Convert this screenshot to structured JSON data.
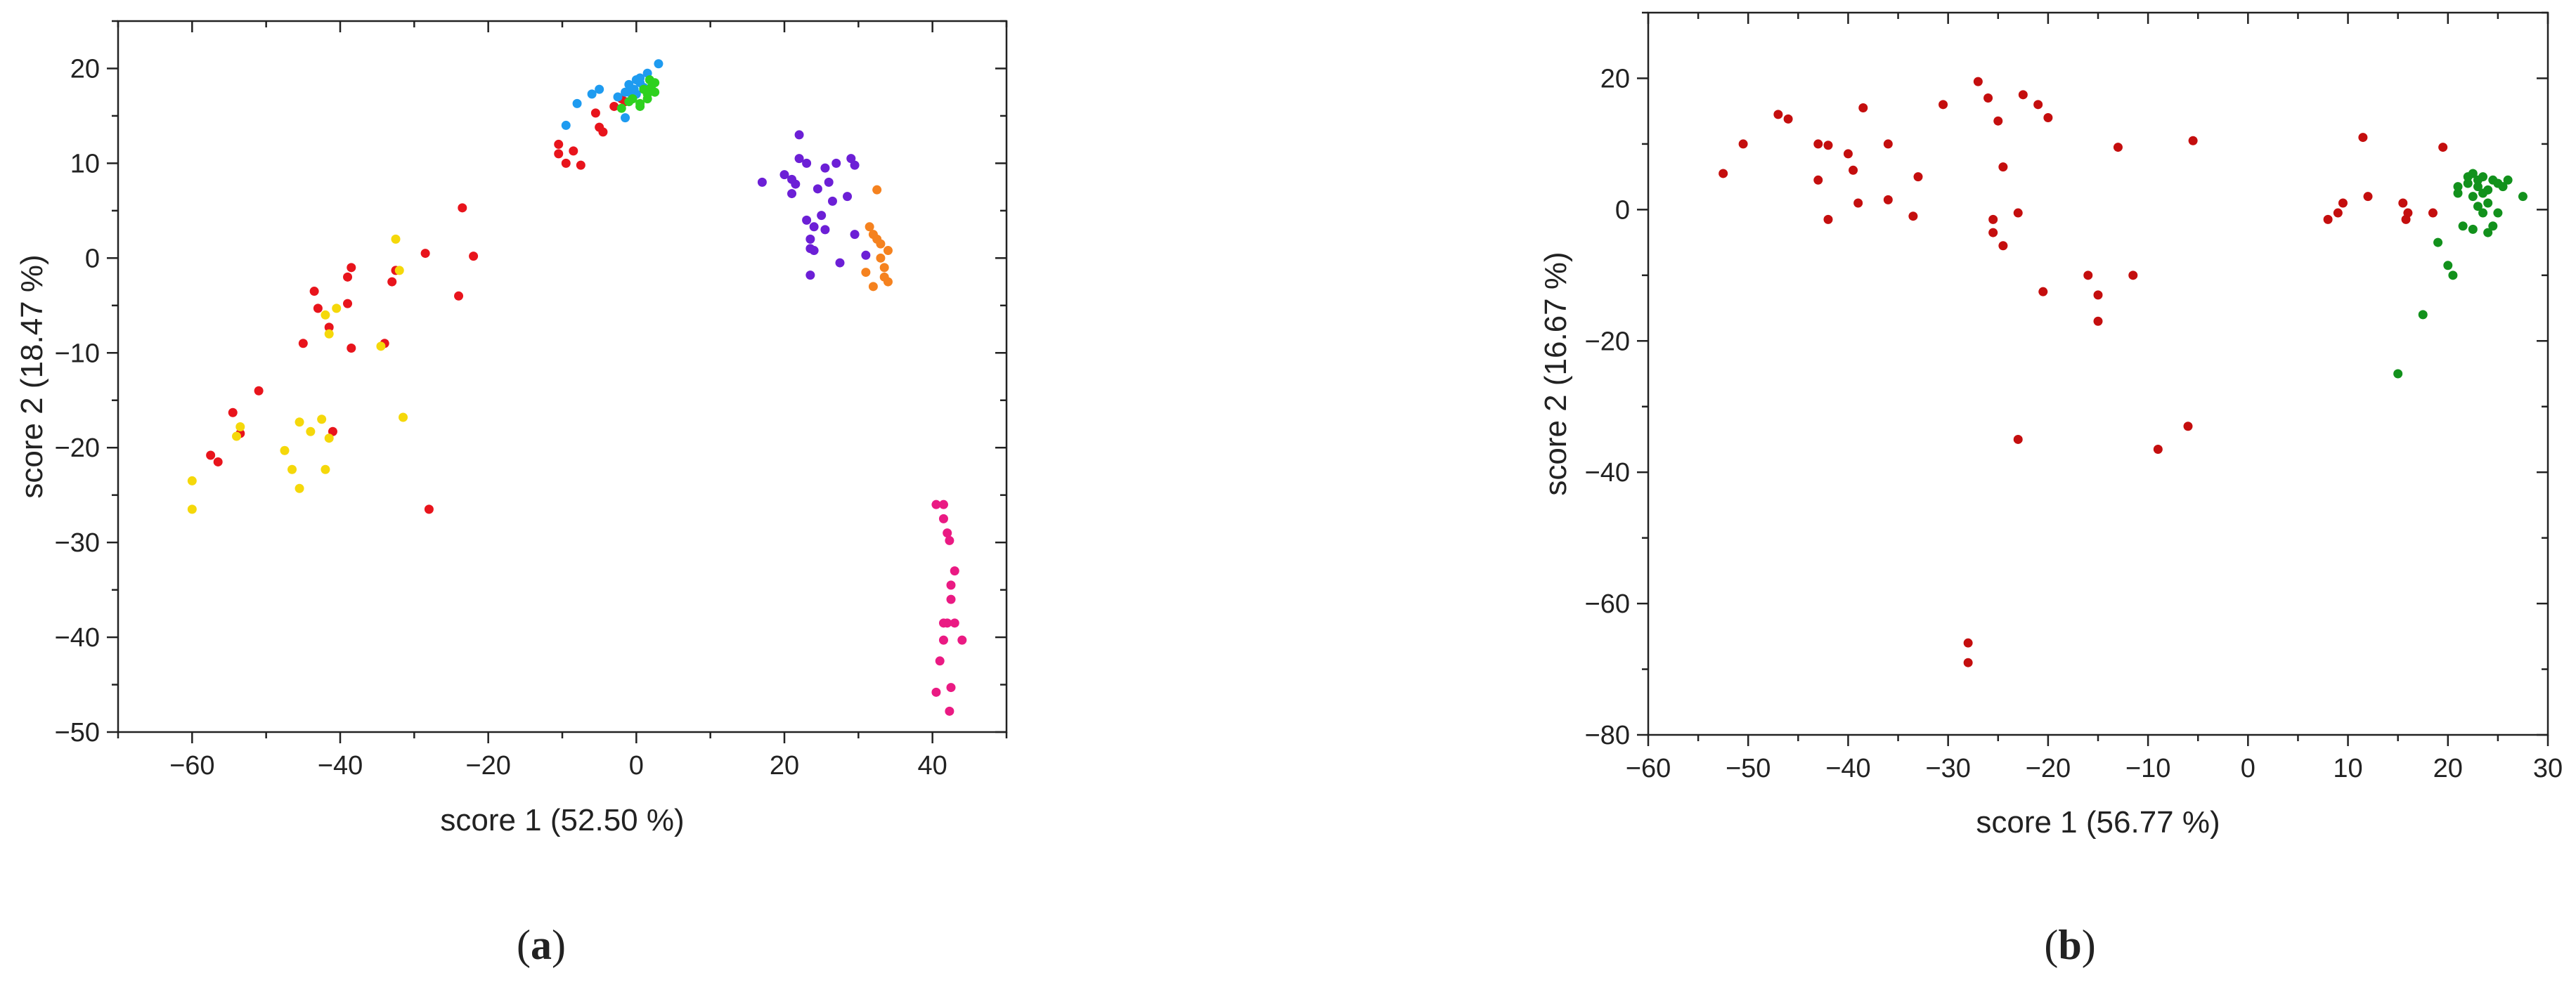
{
  "panels": [
    {
      "label_open": "(",
      "label_letter": "a",
      "label_close": ")"
    },
    {
      "label_open": "(",
      "label_letter": "b",
      "label_close": ")"
    }
  ],
  "chart_data": [
    {
      "type": "scatter",
      "title": "",
      "xlabel": "score 1 (52.50 %)",
      "ylabel": "score 2 (18.47 %)",
      "xlim": [
        -70,
        50
      ],
      "ylim": [
        -50,
        25
      ],
      "xticks": [
        -60,
        -40,
        -20,
        0,
        20,
        40
      ],
      "yticks": [
        20,
        10,
        0,
        -10,
        -20,
        -30,
        -40,
        -50
      ],
      "xtick_labels": [
        "−60",
        "−40",
        "−20",
        "0",
        "20",
        "40"
      ],
      "ytick_labels": [
        "20",
        "10",
        "0",
        "−10",
        "−20",
        "−30",
        "−40",
        "−50"
      ],
      "grid": false,
      "series": [
        {
          "color": "#e8141c",
          "points": [
            [
              -10.5,
              12
            ],
            [
              -10.5,
              11
            ],
            [
              -9.5,
              10
            ],
            [
              -8.5,
              11.3
            ],
            [
              -7.5,
              9.8
            ],
            [
              -5.5,
              15.3
            ],
            [
              -5,
              13.8
            ],
            [
              -4.5,
              13.3
            ],
            [
              -3,
              16
            ],
            [
              -2,
              16.8
            ],
            [
              -1.5,
              16.5
            ],
            [
              -23.5,
              5.3
            ],
            [
              -22,
              0.2
            ],
            [
              -24,
              -4
            ],
            [
              -28.5,
              0.5
            ],
            [
              -32.5,
              -1.3
            ],
            [
              -33,
              -2.5
            ],
            [
              -34,
              -9
            ],
            [
              -38.5,
              -1
            ],
            [
              -39,
              -2
            ],
            [
              -39,
              -4.8
            ],
            [
              -41.5,
              -7.3
            ],
            [
              -43.5,
              -3.5
            ],
            [
              -43,
              -5.3
            ],
            [
              -45,
              -9
            ],
            [
              -38.5,
              -9.5
            ],
            [
              -51,
              -14
            ],
            [
              -54.5,
              -16.3
            ],
            [
              -53.5,
              -18.5
            ],
            [
              -57.5,
              -20.8
            ],
            [
              -56.5,
              -21.5
            ],
            [
              -41,
              -18.3
            ],
            [
              -28,
              -26.5
            ]
          ]
        },
        {
          "color": "#f5d80a",
          "points": [
            [
              -32.5,
              2
            ],
            [
              -32,
              -1.3
            ],
            [
              -34.5,
              -9.3
            ],
            [
              -40.5,
              -5.3
            ],
            [
              -41.5,
              -8
            ],
            [
              -42,
              -6
            ],
            [
              -31.5,
              -16.8
            ],
            [
              -45.5,
              -17.3
            ],
            [
              -44,
              -18.3
            ],
            [
              -42.5,
              -17
            ],
            [
              -41.5,
              -19
            ],
            [
              -47.5,
              -20.3
            ],
            [
              -46.5,
              -22.3
            ],
            [
              -45.5,
              -24.3
            ],
            [
              -42,
              -22.3
            ],
            [
              -53.5,
              -17.8
            ],
            [
              -54,
              -18.8
            ],
            [
              -60,
              -23.5
            ],
            [
              -60,
              -26.5
            ]
          ]
        },
        {
          "color": "#1e9bf0",
          "points": [
            [
              -9.5,
              14
            ],
            [
              -8,
              16.3
            ],
            [
              -6,
              17.3
            ],
            [
              -5,
              17.8
            ],
            [
              -2.5,
              17
            ],
            [
              -1.5,
              17.5
            ],
            [
              -1.5,
              14.8
            ],
            [
              -1,
              18.3
            ],
            [
              -1,
              17.5
            ],
            [
              0,
              18.8
            ],
            [
              0.5,
              19
            ],
            [
              0,
              17.3
            ],
            [
              -0.5,
              17
            ],
            [
              1,
              18
            ],
            [
              1.5,
              19.5
            ],
            [
              3,
              20.5
            ],
            [
              0.5,
              18.5
            ],
            [
              -0.3,
              17.8
            ]
          ]
        },
        {
          "color": "#2ed11e",
          "points": [
            [
              -2,
              15.8
            ],
            [
              -1,
              16.5
            ],
            [
              0.5,
              16
            ],
            [
              1.5,
              16.8
            ],
            [
              2.5,
              18.5
            ],
            [
              2,
              18
            ],
            [
              1.5,
              17.3
            ],
            [
              0.5,
              16.3
            ],
            [
              1,
              17.8
            ],
            [
              2.5,
              17.5
            ],
            [
              -0.5,
              16.8
            ],
            [
              1.8,
              18.8
            ]
          ]
        },
        {
          "color": "#6c1fd6",
          "points": [
            [
              17,
              8
            ],
            [
              20,
              8.8
            ],
            [
              21,
              8.3
            ],
            [
              21,
              6.8
            ],
            [
              21.5,
              7.8
            ],
            [
              22,
              13
            ],
            [
              22,
              10.5
            ],
            [
              23,
              10
            ],
            [
              23,
              4
            ],
            [
              23.5,
              2
            ],
            [
              23.5,
              1
            ],
            [
              23.5,
              -1.8
            ],
            [
              24,
              0.8
            ],
            [
              24,
              3.3
            ],
            [
              24.5,
              7.3
            ],
            [
              25,
              4.5
            ],
            [
              25.5,
              3
            ],
            [
              25.5,
              9.5
            ],
            [
              26,
              8
            ],
            [
              26.5,
              6
            ],
            [
              27,
              10
            ],
            [
              27.5,
              -0.5
            ],
            [
              28.5,
              6.5
            ],
            [
              29,
              10.5
            ],
            [
              29.5,
              9.8
            ],
            [
              29.5,
              2.5
            ],
            [
              31,
              0.3
            ]
          ]
        },
        {
          "color": "#f5821f",
          "points": [
            [
              32.5,
              7.2
            ],
            [
              31.5,
              3.3
            ],
            [
              32,
              2.5
            ],
            [
              32.5,
              2
            ],
            [
              31,
              -1.5
            ],
            [
              32,
              -3
            ],
            [
              33,
              1.5
            ],
            [
              33,
              0
            ],
            [
              33.5,
              -1
            ],
            [
              33.5,
              -2
            ],
            [
              34,
              -2.5
            ],
            [
              34,
              0.8
            ]
          ]
        },
        {
          "color": "#ea1a83",
          "points": [
            [
              40.5,
              -26
            ],
            [
              41.5,
              -26
            ],
            [
              41.5,
              -27.5
            ],
            [
              42,
              -29
            ],
            [
              42.3,
              -29.8
            ],
            [
              43,
              -33
            ],
            [
              42.5,
              -34.5
            ],
            [
              42.5,
              -36
            ],
            [
              42,
              -38.5
            ],
            [
              41.5,
              -38.5
            ],
            [
              43,
              -38.5
            ],
            [
              44,
              -40.3
            ],
            [
              41.5,
              -40.3
            ],
            [
              41,
              -42.5
            ],
            [
              42.5,
              -45.3
            ],
            [
              40.5,
              -45.8
            ],
            [
              42.3,
              -47.8
            ]
          ]
        }
      ]
    },
    {
      "type": "scatter",
      "title": "",
      "xlabel": "score 1 (56.77 %)",
      "ylabel": "score 2 (16.67 %)",
      "xlim": [
        -60,
        30
      ],
      "ylim": [
        -80,
        30
      ],
      "xticks": [
        -60,
        -50,
        -40,
        -30,
        -20,
        -10,
        0,
        10,
        20,
        30
      ],
      "yticks": [
        20,
        0,
        -20,
        -40,
        -60,
        -80
      ],
      "xtick_labels": [
        "−60",
        "−50",
        "−40",
        "−30",
        "−20",
        "−10",
        "0",
        "10",
        "20",
        "30"
      ],
      "ytick_labels": [
        "20",
        "0",
        "−20",
        "−40",
        "−60",
        "−80"
      ],
      "grid": false,
      "series": [
        {
          "color": "#c40e0e",
          "points": [
            [
              -52.5,
              5.5
            ],
            [
              -50.5,
              10
            ],
            [
              -47,
              14.5
            ],
            [
              -46,
              13.8
            ],
            [
              -43,
              10
            ],
            [
              -43,
              4.5
            ],
            [
              -42,
              9.8
            ],
            [
              -42,
              -1.5
            ],
            [
              -40,
              8.5
            ],
            [
              -39.5,
              6
            ],
            [
              -39,
              1
            ],
            [
              -38.5,
              15.5
            ],
            [
              -36,
              10
            ],
            [
              -36,
              1.5
            ],
            [
              -33.5,
              -1
            ],
            [
              -33,
              5
            ],
            [
              -30.5,
              16
            ],
            [
              -27,
              19.5
            ],
            [
              -26,
              17
            ],
            [
              -25.5,
              -1.5
            ],
            [
              -25.5,
              -3.5
            ],
            [
              -25,
              13.5
            ],
            [
              -24.5,
              6.5
            ],
            [
              -24.5,
              -5.5
            ],
            [
              -23,
              -0.5
            ],
            [
              -22.5,
              17.5
            ],
            [
              -21,
              16
            ],
            [
              -20.5,
              -12.5
            ],
            [
              -20,
              14
            ],
            [
              -16,
              -10
            ],
            [
              -15,
              -13
            ],
            [
              -15,
              -17
            ],
            [
              -13,
              9.5
            ],
            [
              -11.5,
              -10
            ],
            [
              -9,
              -36.5
            ],
            [
              -6,
              -33
            ],
            [
              -5.5,
              10.5
            ],
            [
              -23,
              -35
            ],
            [
              -28,
              -66
            ],
            [
              -28,
              -69
            ],
            [
              8,
              -1.5
            ],
            [
              9,
              -0.5
            ],
            [
              9.5,
              1
            ],
            [
              11.5,
              11
            ],
            [
              12,
              2
            ],
            [
              15.5,
              1
            ],
            [
              15.8,
              -1.5
            ],
            [
              16,
              -0.5
            ],
            [
              18.5,
              -0.5
            ],
            [
              19.5,
              9.5
            ]
          ]
        },
        {
          "color": "#12911c",
          "points": [
            [
              15,
              -25
            ],
            [
              17.5,
              -16
            ],
            [
              19,
              -5
            ],
            [
              20,
              -8.5
            ],
            [
              20.5,
              -10
            ],
            [
              21,
              3.5
            ],
            [
              21,
              2.5
            ],
            [
              21.5,
              -2.5
            ],
            [
              22,
              5
            ],
            [
              22,
              4
            ],
            [
              22.5,
              2
            ],
            [
              22.5,
              5.5
            ],
            [
              22.5,
              -3
            ],
            [
              23,
              3.5
            ],
            [
              23,
              4.5
            ],
            [
              23,
              0.5
            ],
            [
              23.5,
              2.5
            ],
            [
              23.5,
              5
            ],
            [
              23.5,
              -0.5
            ],
            [
              24,
              3
            ],
            [
              24,
              -3.5
            ],
            [
              24,
              1
            ],
            [
              24.5,
              4.5
            ],
            [
              24.5,
              -2.5
            ],
            [
              25,
              4
            ],
            [
              25,
              -0.5
            ],
            [
              25.5,
              3.5
            ],
            [
              26,
              4.5
            ],
            [
              27.5,
              2
            ]
          ]
        }
      ]
    }
  ]
}
